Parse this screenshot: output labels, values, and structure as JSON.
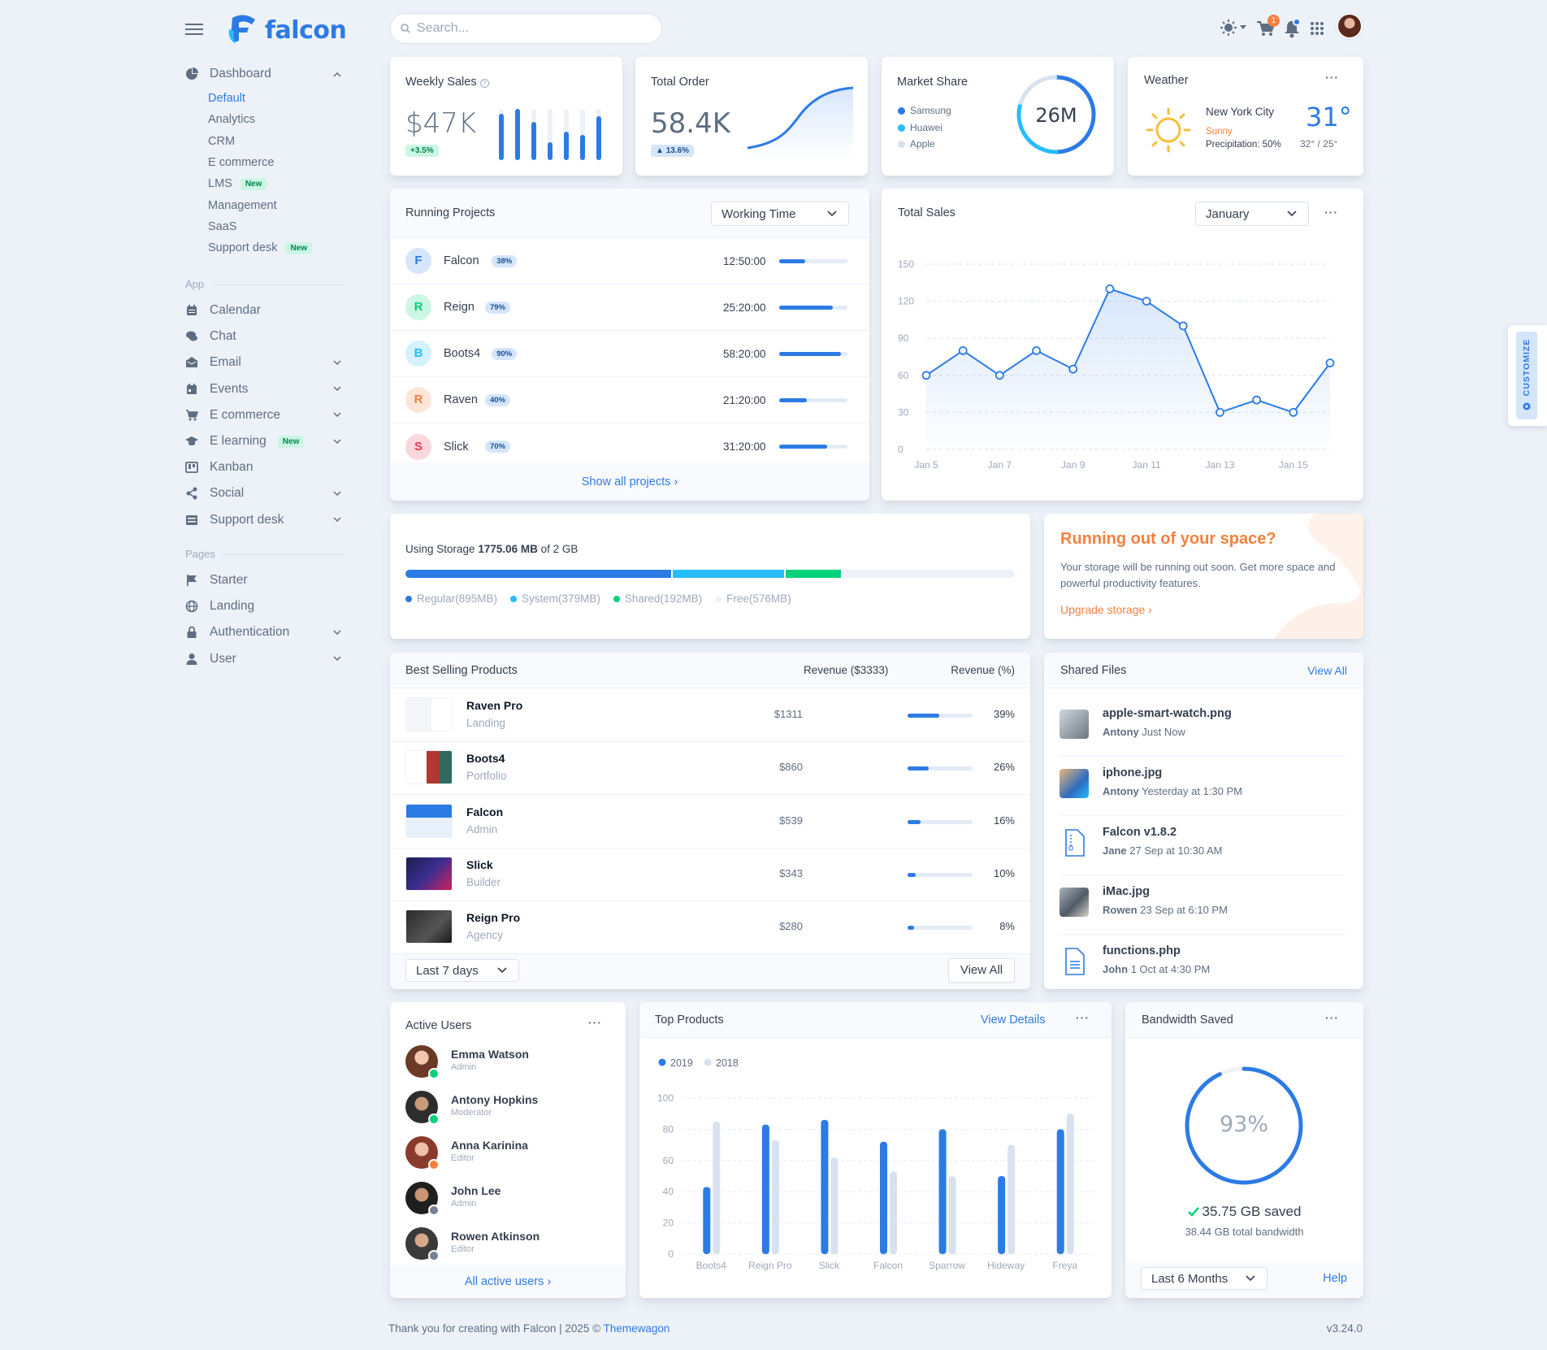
{
  "brand": {
    "name": "falcon"
  },
  "search": {
    "placeholder": "Search..."
  },
  "topbar": {
    "cart_count": "1"
  },
  "sidebar": {
    "dashboard_label": "Dashboard",
    "dashboard_items": [
      {
        "label": "Default",
        "badge": ""
      },
      {
        "label": "Analytics",
        "badge": ""
      },
      {
        "label": "CRM",
        "badge": ""
      },
      {
        "label": "E commerce",
        "badge": ""
      },
      {
        "label": "LMS",
        "badge": "New"
      },
      {
        "label": "Management",
        "badge": ""
      },
      {
        "label": "SaaS",
        "badge": ""
      },
      {
        "label": "Support desk",
        "badge": "New"
      }
    ],
    "app_label": "App",
    "app_items": [
      {
        "label": "Calendar",
        "icon": "calendar-icon"
      },
      {
        "label": "Chat",
        "icon": "chat-icon"
      },
      {
        "label": "Email",
        "icon": "email-icon"
      },
      {
        "label": "Events",
        "icon": "events-icon"
      },
      {
        "label": "E commerce",
        "icon": "cart-icon"
      },
      {
        "label": "E learning",
        "icon": "graduation-cap-icon",
        "badge": "New"
      },
      {
        "label": "Kanban",
        "icon": "kanban-icon"
      },
      {
        "label": "Social",
        "icon": "share-icon"
      },
      {
        "label": "Support desk",
        "icon": "support-desk-icon"
      }
    ],
    "pages_label": "Pages",
    "pages_items": [
      {
        "label": "Starter",
        "icon": "flag-icon"
      },
      {
        "label": "Landing",
        "icon": "globe-icon"
      },
      {
        "label": "Authentication",
        "icon": "lock-icon"
      },
      {
        "label": "User",
        "icon": "user-icon"
      }
    ]
  },
  "weekly_sales": {
    "title": "Weekly Sales",
    "value": "$47K",
    "change": "+3.5%",
    "bars": [
      0.9,
      1.0,
      0.75,
      0.35,
      0.55,
      0.5,
      0.85
    ]
  },
  "total_order": {
    "title": "Total Order",
    "value": "58.4K",
    "change": "13.6%"
  },
  "market_share": {
    "title": "Market Share",
    "value": "26M",
    "legend": [
      "Samsung",
      "Huawei",
      "Apple"
    ],
    "colors": [
      "#2c7be5",
      "#27bcfd",
      "#d8e2ef"
    ],
    "shares": [
      0.5,
      0.3,
      0.2
    ]
  },
  "weather": {
    "title": "Weather",
    "city": "New York City",
    "condition": "Sunny",
    "precipitation": "Precipitation: 50%",
    "temp": "31°",
    "range": "32° / 25°"
  },
  "running_projects": {
    "title": "Running Projects",
    "filter": "Working Time",
    "rows": [
      {
        "letter": "F",
        "name": "Falcon",
        "pct": "38%",
        "time": "12:50:00",
        "progress": 0.38,
        "bg": "#d5e5fa",
        "fg": "#2c7be5"
      },
      {
        "letter": "R",
        "name": "Reign",
        "pct": "79%",
        "time": "25:20:00",
        "progress": 0.79,
        "bg": "#ccf6e4",
        "fg": "#00d27a"
      },
      {
        "letter": "B",
        "name": "Boots4",
        "pct": "90%",
        "time": "58:20:00",
        "progress": 0.9,
        "bg": "#d4f2ff",
        "fg": "#27bcfd"
      },
      {
        "letter": "R",
        "name": "Raven",
        "pct": "40%",
        "time": "21:20:00",
        "progress": 0.4,
        "bg": "#fde6d8",
        "fg": "#f5803e"
      },
      {
        "letter": "S",
        "name": "Slick",
        "pct": "70%",
        "time": "31:20:00",
        "progress": 0.7,
        "bg": "#fad7dd",
        "fg": "#e63757"
      }
    ],
    "footer_link": "Show all projects ›"
  },
  "total_sales": {
    "title": "Total Sales",
    "filter": "January"
  },
  "storage": {
    "label_prefix": "Using Storage ",
    "used": "1775.06 MB",
    "label_suffix": " of 2 GB",
    "segments": [
      {
        "label": "Regular(895MB)",
        "mb": 895,
        "color": "#2c7be5"
      },
      {
        "label": "System(379MB)",
        "mb": 379,
        "color": "#27bcfd"
      },
      {
        "label": "Shared(192MB)",
        "mb": 192,
        "color": "#00d27a"
      },
      {
        "label": "Free(576MB)",
        "mb": 576,
        "color": "#edf2f9"
      }
    ]
  },
  "space_promo": {
    "title": "Running out of your space?",
    "text": "Your storage will be running out soon. Get more space and powerful productivity features.",
    "link": "Upgrade storage ›"
  },
  "best_selling": {
    "title": "Best Selling Products",
    "col_revenue": "Revenue ($3333)",
    "col_pct": "Revenue (%)",
    "rows": [
      {
        "name": "Raven Pro",
        "sub": "Landing",
        "revenue": "$1311",
        "pct": "39%",
        "fraction": 0.39
      },
      {
        "name": "Boots4",
        "sub": "Portfolio",
        "revenue": "$860",
        "pct": "26%",
        "fraction": 0.26
      },
      {
        "name": "Falcon",
        "sub": "Admin",
        "revenue": "$539",
        "pct": "16%",
        "fraction": 0.16
      },
      {
        "name": "Slick",
        "sub": "Builder",
        "revenue": "$343",
        "pct": "10%",
        "fraction": 0.1
      },
      {
        "name": "Reign Pro",
        "sub": "Agency",
        "revenue": "$280",
        "pct": "8%",
        "fraction": 0.08
      }
    ],
    "filter": "Last 7 days",
    "view_all": "View All"
  },
  "shared_files": {
    "title": "Shared Files",
    "view_all": "View All",
    "rows": [
      {
        "name": "apple-smart-watch.png",
        "user": "Antony",
        "time": "Just Now"
      },
      {
        "name": "iphone.jpg",
        "user": "Antony",
        "time": "Yesterday at 1:30 PM"
      },
      {
        "name": "Falcon v1.8.2",
        "user": "Jane",
        "time": "27 Sep at 10:30 AM"
      },
      {
        "name": "iMac.jpg",
        "user": "Rowen",
        "time": "23 Sep at 6:10 PM"
      },
      {
        "name": "functions.php",
        "user": "John",
        "time": "1 Oct at 4:30 PM"
      }
    ]
  },
  "active_users": {
    "title": "Active Users",
    "rows": [
      {
        "name": "Emma Watson",
        "role": "Admin",
        "status": "#00d27a"
      },
      {
        "name": "Antony Hopkins",
        "role": "Moderator",
        "status": "#00d27a"
      },
      {
        "name": "Anna Karinina",
        "role": "Editor",
        "status": "#f5803e"
      },
      {
        "name": "John Lee",
        "role": "Admin",
        "status": "#748194"
      },
      {
        "name": "Rowen Atkinson",
        "role": "Editor",
        "status": "#748194"
      }
    ],
    "footer_link": "All active users ›"
  },
  "top_products": {
    "title": "Top Products",
    "view_details": "View Details"
  },
  "bandwidth": {
    "title": "Bandwidth Saved",
    "value": "93%",
    "fraction": 0.93,
    "saved": "35.75 GB saved",
    "total": "38.44 GB total bandwidth",
    "filter": "Last 6 Months",
    "help": "Help"
  },
  "customize_label": "CUSTOMIZE",
  "footer": {
    "text": "Thank you for creating with Falcon | 2025 © ",
    "link": "Themewagon",
    "version": "v3.24.0"
  },
  "chart_data": [
    {
      "type": "line",
      "x": [
        "Jan 5",
        "Jan 6",
        "Jan 7",
        "Jan 8",
        "Jan 9",
        "Jan 10",
        "Jan 11",
        "Jan 12",
        "Jan 13",
        "Jan 14",
        "Jan 15",
        "Jan 16"
      ],
      "x_tick_labels": [
        "Jan 5",
        "Jan 7",
        "Jan 9",
        "Jan 11",
        "Jan 13",
        "Jan 15"
      ],
      "values": [
        60,
        80,
        60,
        80,
        65,
        130,
        120,
        100,
        30,
        40,
        30,
        70
      ],
      "ylim": [
        0,
        150
      ],
      "yticks": [
        0,
        30,
        60,
        90,
        120,
        150
      ],
      "grid": true
    },
    {
      "type": "bar",
      "categories": [
        "Boots4",
        "Reign Pro",
        "Slick",
        "Falcon",
        "Sparrow",
        "Hideway",
        "Freya"
      ],
      "series": [
        {
          "name": "2019",
          "color": "#2c7be5",
          "values": [
            43,
            83,
            86,
            72,
            80,
            50,
            80
          ]
        },
        {
          "name": "2018",
          "color": "#d8e2ef",
          "values": [
            85,
            73,
            62,
            53,
            50,
            70,
            90
          ]
        }
      ],
      "ylim": [
        0,
        100
      ],
      "yticks": [
        0,
        20,
        40,
        60,
        80,
        100
      ],
      "legend": "top-left",
      "grid": true
    }
  ]
}
